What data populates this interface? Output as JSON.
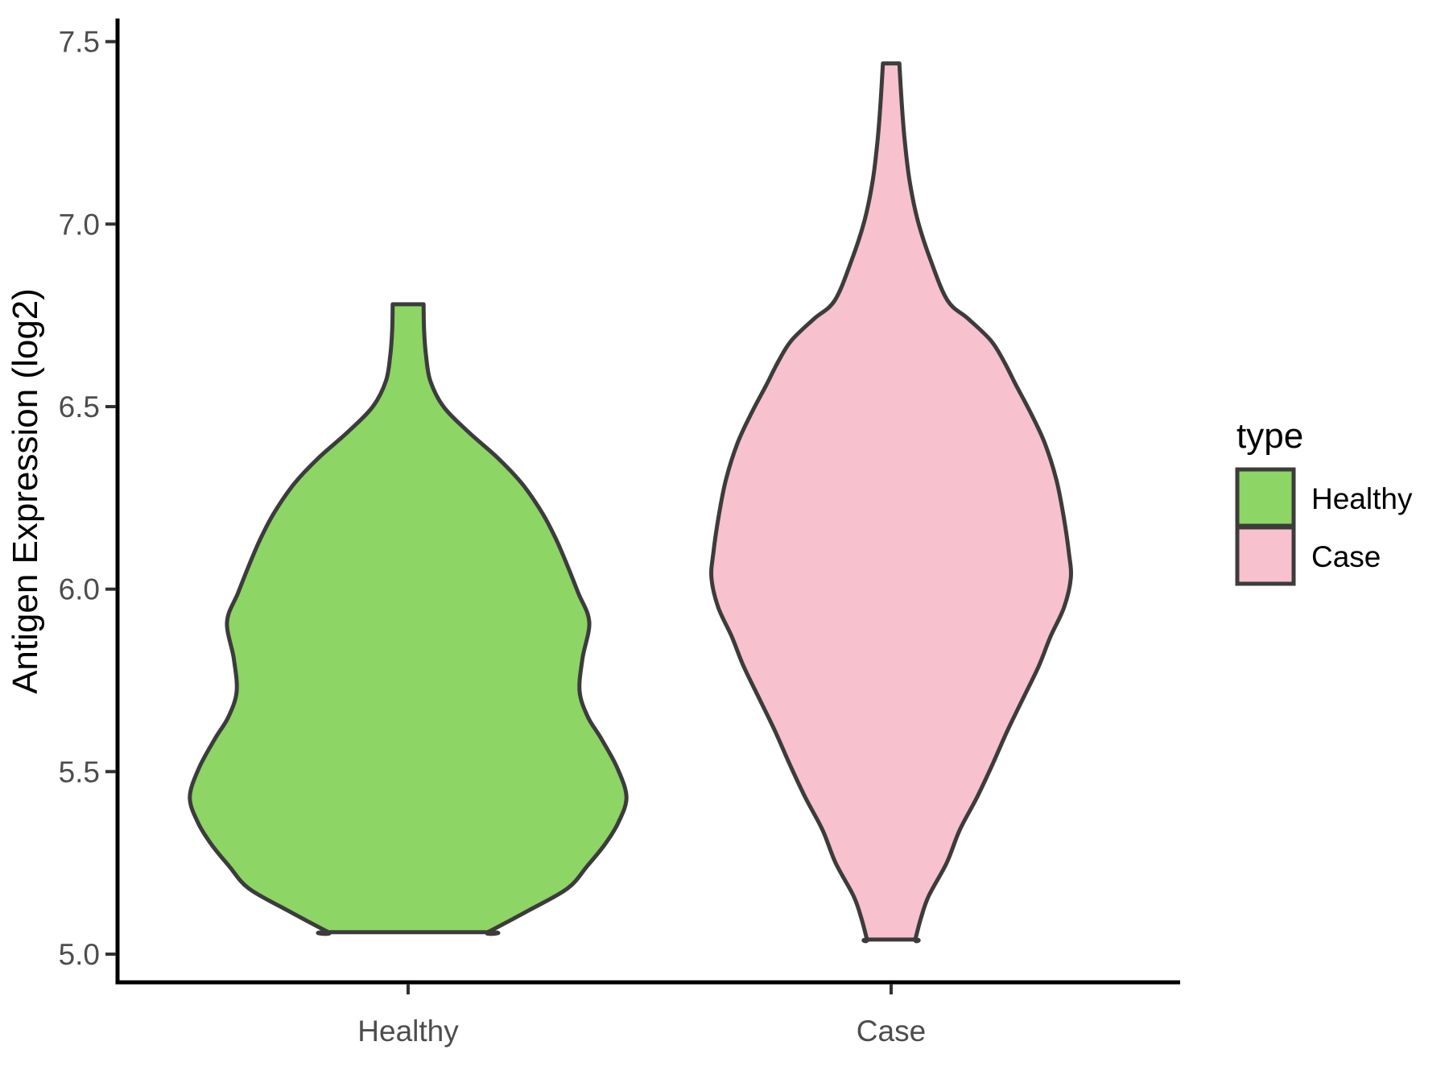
{
  "y_axis": {
    "title": "Antigen Expression (log2)",
    "tick_labels": [
      "7.5",
      "7.0",
      "6.5",
      "6.0",
      "5.5",
      "5.0"
    ]
  },
  "x_axis": {
    "tick_labels": [
      "Healthy",
      "Case"
    ]
  },
  "legend": {
    "title": "type",
    "items": [
      {
        "label": "Healthy",
        "color": "#8DD564"
      },
      {
        "label": "Case",
        "color": "#F7C1CD"
      }
    ]
  },
  "colors": {
    "outline": "#3C3C3C",
    "axis_line": "#000000",
    "axis_text": "#4D4D4D"
  },
  "chart_data": {
    "type": "violin",
    "title": "",
    "xlabel": "",
    "ylabel": "Antigen Expression (log2)",
    "categories": [
      "Healthy",
      "Case"
    ],
    "y_ticks": [
      5.0,
      5.5,
      6.0,
      6.5,
      7.0,
      7.5
    ],
    "ylim": [
      4.92,
      7.56
    ],
    "grid": false,
    "legend_position": "right",
    "legend_title": "type",
    "series": [
      {
        "name": "Healthy",
        "color": "#8DD564",
        "center": 1,
        "value_range": [
          5.06,
          6.78
        ],
        "peak_value": 5.43,
        "max_half_width": 0.452,
        "profile": [
          [
            6.78,
            0.032
          ],
          [
            6.71,
            0.033
          ],
          [
            6.64,
            0.037
          ],
          [
            6.57,
            0.046
          ],
          [
            6.5,
            0.073
          ],
          [
            6.43,
            0.125
          ],
          [
            6.36,
            0.185
          ],
          [
            6.29,
            0.235
          ],
          [
            6.21,
            0.277
          ],
          [
            6.14,
            0.305
          ],
          [
            6.07,
            0.328
          ],
          [
            5.99,
            0.352
          ],
          [
            5.91,
            0.375
          ],
          [
            5.81,
            0.361
          ],
          [
            5.72,
            0.355
          ],
          [
            5.65,
            0.372
          ],
          [
            5.59,
            0.4
          ],
          [
            5.51,
            0.433
          ],
          [
            5.43,
            0.452
          ],
          [
            5.36,
            0.435
          ],
          [
            5.3,
            0.407
          ],
          [
            5.24,
            0.37
          ],
          [
            5.18,
            0.33
          ],
          [
            5.12,
            0.25
          ],
          [
            5.06,
            0.165
          ]
        ]
      },
      {
        "name": "Case",
        "color": "#F7C1CD",
        "center": 2,
        "value_range": [
          5.04,
          7.44
        ],
        "peak_value": 6.03,
        "max_half_width": 0.372,
        "profile": [
          [
            7.44,
            0.017
          ],
          [
            7.33,
            0.022
          ],
          [
            7.23,
            0.028
          ],
          [
            7.12,
            0.038
          ],
          [
            7.01,
            0.055
          ],
          [
            6.9,
            0.082
          ],
          [
            6.79,
            0.117
          ],
          [
            6.74,
            0.16
          ],
          [
            6.68,
            0.207
          ],
          [
            6.62,
            0.235
          ],
          [
            6.56,
            0.258
          ],
          [
            6.48,
            0.29
          ],
          [
            6.4,
            0.318
          ],
          [
            6.3,
            0.342
          ],
          [
            6.2,
            0.357
          ],
          [
            6.1,
            0.368
          ],
          [
            6.03,
            0.372
          ],
          [
            5.95,
            0.358
          ],
          [
            5.87,
            0.33
          ],
          [
            5.79,
            0.306
          ],
          [
            5.7,
            0.273
          ],
          [
            5.61,
            0.24
          ],
          [
            5.52,
            0.21
          ],
          [
            5.43,
            0.178
          ],
          [
            5.34,
            0.142
          ],
          [
            5.25,
            0.115
          ],
          [
            5.16,
            0.078
          ],
          [
            5.1,
            0.062
          ],
          [
            5.04,
            0.05
          ]
        ]
      }
    ]
  }
}
